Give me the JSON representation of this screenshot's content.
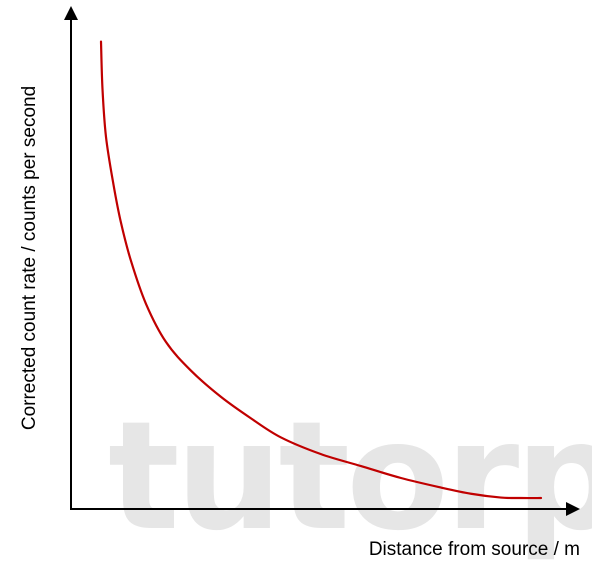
{
  "chart_data": {
    "type": "line",
    "title": "",
    "xlabel": "Distance from source / m",
    "ylabel": "Corrected count rate / counts per second",
    "x_ticks": [],
    "y_ticks": [],
    "grid": false,
    "legend": "none",
    "xlim": [
      0,
      100
    ],
    "ylim": [
      0,
      100
    ],
    "series": [
      {
        "values_x": [
          6,
          6.3,
          7,
          8.5,
          10,
          12,
          15,
          19,
          24,
          30,
          36,
          42,
          50,
          58,
          66,
          74,
          80,
          86,
          90,
          94
        ],
        "values_y": [
          98,
          88,
          78,
          68,
          60,
          52,
          43,
          35,
          29,
          23.5,
          19,
          15,
          11.5,
          9,
          6.5,
          4.5,
          3.2,
          2.4,
          2.3,
          2.3
        ],
        "color": "#c00000"
      }
    ]
  },
  "watermark": {
    "text": "tutorp",
    "color": "#e6e6e6"
  },
  "colors": {
    "axis": "#000000",
    "curve": "#c00000"
  },
  "icons": {
    "y_axis_arrow": "arrow-up",
    "x_axis_arrow": "arrow-right"
  }
}
